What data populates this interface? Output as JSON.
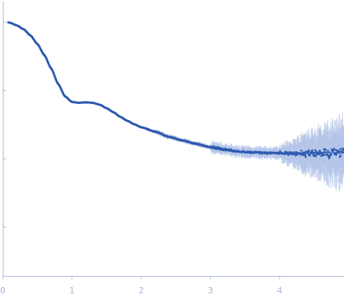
{
  "chart_data": {
    "type": "scatter",
    "title": "",
    "xlabel": "",
    "ylabel": "",
    "xlim": [
      0,
      4.93
    ],
    "x_ticks": [
      "0",
      "1",
      "2",
      "3",
      "4"
    ],
    "y_scale": "log",
    "grid": false,
    "legend": "none",
    "series": [
      {
        "point_color": "#2f5bb0",
        "errorbar_color": "#a9bde6",
        "x": [
          0.05,
          0.1,
          0.2,
          0.3,
          0.4,
          0.5,
          0.6,
          0.7,
          0.8,
          0.9,
          1.0,
          1.1,
          1.2,
          1.3,
          1.4,
          1.5,
          1.6,
          1.7,
          1.8,
          1.9,
          2.0,
          2.2,
          2.4,
          2.6,
          2.8,
          3.0,
          3.2,
          3.4,
          3.6,
          3.8,
          4.0,
          4.2,
          4.4,
          4.6,
          4.8,
          4.93
        ],
        "y": [
          1.0,
          0.985,
          0.9,
          0.79,
          0.64,
          0.48,
          0.33,
          0.21,
          0.125,
          0.082,
          0.068,
          0.066,
          0.067,
          0.066,
          0.062,
          0.055,
          0.048,
          0.041,
          0.036,
          0.032,
          0.029,
          0.025,
          0.021,
          0.0185,
          0.0165,
          0.0148,
          0.0137,
          0.0128,
          0.0124,
          0.0122,
          0.0121,
          0.012,
          0.012,
          0.0121,
          0.0122,
          0.0122
        ]
      }
    ]
  }
}
